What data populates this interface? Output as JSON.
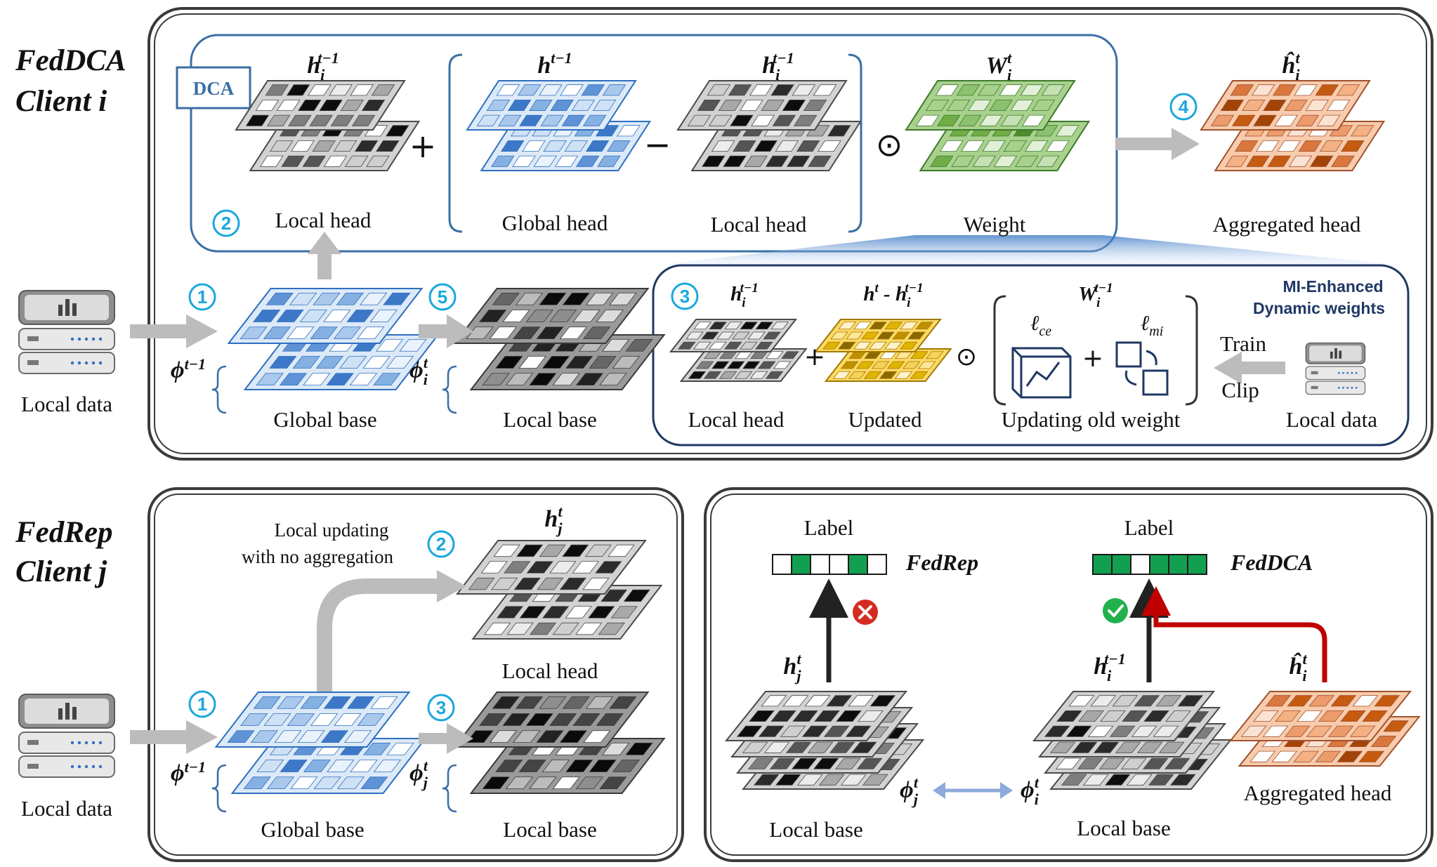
{
  "fedDCA": {
    "title_line1": "FedDCA",
    "title_line2": "Client i",
    "dca_box_label": "DCA",
    "mi_label_line1": "MI-Enhanced",
    "mi_label_line2": "Dynamic weights",
    "steps": [
      "1",
      "2",
      "3",
      "4",
      "5"
    ],
    "operators": {
      "plus": "+",
      "minus": "−",
      "odot": "⊙"
    },
    "heads": {
      "local_head_prev": {
        "symbol": "h",
        "sub": "i",
        "sup": "t−1",
        "label": "Local head"
      },
      "global_head": {
        "symbol": "h",
        "sup": "t−1",
        "label": "Global head"
      },
      "local_head_prev2": {
        "symbol": "h",
        "sub": "i",
        "sup": "t−1",
        "label": "Local head"
      },
      "weight": {
        "symbol": "W",
        "sub": "i",
        "sup": "t",
        "label": "Weight"
      },
      "aggregated": {
        "symbol": "ĥ",
        "sub": "i",
        "sup": "t",
        "label": "Aggregated head"
      }
    },
    "base": {
      "global": {
        "symbol": "ϕ",
        "sup": "t−1",
        "label": "Global base"
      },
      "local": {
        "symbol": "ϕ",
        "sub": "i",
        "sup": "t",
        "label": "Local base"
      }
    },
    "local_data_label": "Local data",
    "inner": {
      "local_head": {
        "symbol": "h",
        "sub": "i",
        "sup": "t−1",
        "label": "Local head"
      },
      "updated": {
        "symbol_a": "h",
        "sup_a": "t",
        "dash": " - ",
        "symbol_b": "h",
        "sub_b": "i",
        "sup_b": "t−1",
        "label": "Updated"
      },
      "old_weight": {
        "symbol": "W",
        "sub": "i",
        "sup": "t−1",
        "label": "Updating old weight"
      },
      "loss_ce": {
        "symbol": "ℓ",
        "sub": "ce"
      },
      "loss_mi": {
        "symbol": "ℓ",
        "sub": "mi"
      },
      "train_label": "Train",
      "clip_label": "Clip",
      "local_data_label": "Local data"
    }
  },
  "fedRep": {
    "title_line1": "FedRep",
    "title_line2": "Client j",
    "steps": [
      "1",
      "2",
      "3"
    ],
    "note_line1": "Local updating",
    "note_line2": "with no aggregation",
    "head": {
      "symbol": "h",
      "sub": "j",
      "sup": "t",
      "label": "Local head"
    },
    "global_base": {
      "symbol": "ϕ",
      "sup": "t−1",
      "label": "Global base"
    },
    "local_base": {
      "symbol": "ϕ",
      "sub": "j",
      "sup": "t",
      "label": "Local base"
    },
    "local_data_label": "Local data"
  },
  "comparison": {
    "left": {
      "label_title": "Label",
      "method": "FedRep",
      "label_cells": [
        0,
        1,
        0,
        0,
        1,
        0
      ],
      "head": {
        "symbol": "h",
        "sub": "j",
        "sup": "t"
      },
      "base": {
        "symbol": "ϕ",
        "sub": "j",
        "sup": "t",
        "label": "Local base"
      },
      "result": "wrong"
    },
    "right": {
      "label_title": "Label",
      "method": "FedDCA",
      "label_cells": [
        1,
        1,
        0,
        1,
        1,
        1
      ],
      "head": {
        "symbol": "h",
        "sub": "i",
        "sup": "t−1"
      },
      "agg_head": {
        "symbol": "ĥ",
        "sub": "i",
        "sup": "t",
        "label": "Aggregated head"
      },
      "base": {
        "symbol": "ϕ",
        "sub": "i",
        "sup": "t",
        "label": "Local base"
      },
      "result": "correct"
    }
  },
  "colors": {
    "blue_frame": "#3a6ea5",
    "navy_frame": "#1f3864",
    "step_cyan": "#1aa7dc",
    "green_cell": "#12a050",
    "red_cross": "#d62b20",
    "green_check": "#22b14c",
    "red_arrow": "#c00000",
    "connector": "#8ea9db"
  }
}
